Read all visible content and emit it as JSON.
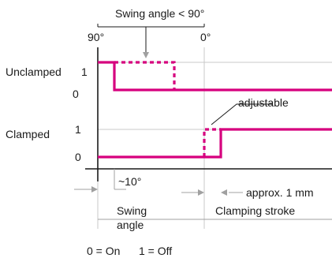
{
  "colors": {
    "signal": "#d6007e",
    "grid": "#c8c8c8",
    "axis": "#1a1a1a",
    "dimension": "#a0a0a0"
  },
  "top_note": "Swing angle < 90°",
  "angle_labels": {
    "start": "90°",
    "end": "0°"
  },
  "rows": {
    "unclamped": {
      "label": "Unclamped",
      "level_high": "1",
      "level_low": "0"
    },
    "clamped": {
      "label": "Clamped",
      "level_high": "1",
      "level_low": "0"
    }
  },
  "adjustable_label": "adjustable",
  "approx_angle_label": "~10°",
  "approx_mm_label": "approx. 1 mm",
  "phases": {
    "swing_line1": "Swing",
    "swing_line2": "angle",
    "clamping": "Clamping stroke"
  },
  "legend": {
    "on": "0 = On",
    "off": "1 = Off"
  }
}
